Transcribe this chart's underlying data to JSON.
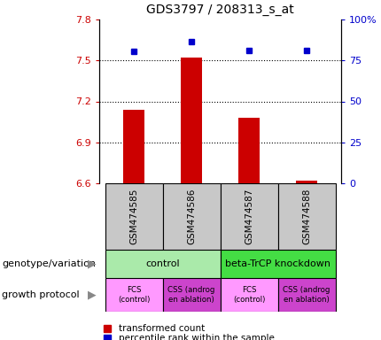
{
  "title": "GDS3797 / 208313_s_at",
  "samples": [
    "GSM474585",
    "GSM474586",
    "GSM474587",
    "GSM474588"
  ],
  "bar_values": [
    7.14,
    7.52,
    7.08,
    6.62
  ],
  "dot_values_scaled": [
    7.565,
    7.635,
    7.57,
    7.575
  ],
  "ylim_left": [
    6.6,
    7.8
  ],
  "ylim_right": [
    0,
    100
  ],
  "yticks_left": [
    6.6,
    6.9,
    7.2,
    7.5,
    7.8
  ],
  "ytick_labels_left": [
    "6.6",
    "6.9",
    "7.2",
    "7.5",
    "7.8"
  ],
  "yticks_right": [
    0,
    25,
    50,
    75,
    100
  ],
  "ytick_labels_right": [
    "0",
    "25",
    "50",
    "75",
    "100%"
  ],
  "bar_color": "#cc0000",
  "dot_color": "#0000cc",
  "bar_bottom": 6.6,
  "geno_groups": [
    {
      "c1": 1,
      "c2": 2,
      "label": "control",
      "color": "#aaeaaa"
    },
    {
      "c1": 3,
      "c2": 4,
      "label": "beta-TrCP knockdown",
      "color": "#44dd44"
    }
  ],
  "growth_labels": [
    "FCS\n(control)",
    "CSS (androg\nen ablation)",
    "FCS\n(control)",
    "CSS (androg\nen ablation)"
  ],
  "growth_colors": [
    "#ff99ff",
    "#cc44cc",
    "#ff99ff",
    "#cc44cc"
  ],
  "legend_red_label": "transformed count",
  "legend_blue_label": "percentile rank within the sample",
  "left_label_genotype": "genotype/variation",
  "left_label_growth": "growth protocol",
  "left_ytick_color": "#cc0000",
  "right_ytick_color": "#0000cc",
  "grid_lines": [
    6.9,
    7.2,
    7.5
  ],
  "sample_box_color": "#c8c8c8"
}
